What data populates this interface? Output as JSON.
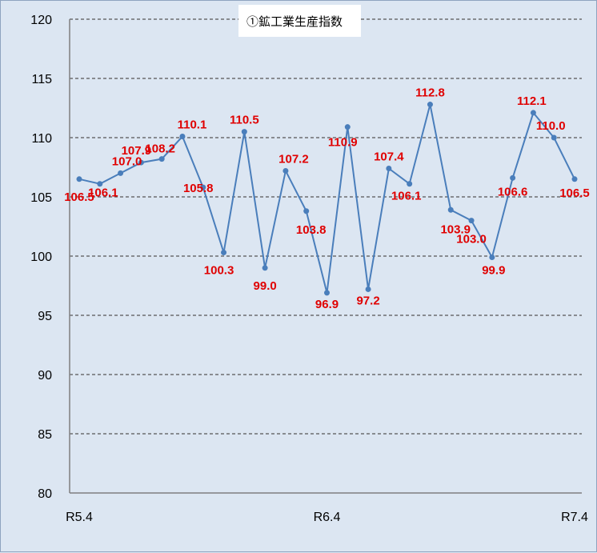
{
  "chart_data": {
    "type": "line",
    "title": "",
    "legend": "①鉱工業生産指数",
    "xlabel": "",
    "ylabel": "",
    "ylim": [
      80,
      120
    ],
    "y_ticks": [
      80,
      85,
      90,
      95,
      100,
      105,
      110,
      115,
      120
    ],
    "x_tick_labels": [
      "R5.4",
      "R6.4",
      "R7.4"
    ],
    "grid": true,
    "series": [
      {
        "name": "①鉱工業生産指数",
        "color": "#4a7ebb",
        "values": [
          106.5,
          106.1,
          107.0,
          107.9,
          108.2,
          110.1,
          105.8,
          100.3,
          110.5,
          99.0,
          107.2,
          103.8,
          96.9,
          110.9,
          97.2,
          107.4,
          106.1,
          112.8,
          103.9,
          103.0,
          99.9,
          106.6,
          112.1,
          110.0,
          106.5
        ],
        "labels": [
          "106.5",
          "106.1",
          "107.0",
          "107.9",
          "108.2",
          "110.1",
          "105.8",
          "100.3",
          "110.5",
          "99.0",
          "107.2",
          "103.8",
          "96.9",
          "110.9",
          "97.2",
          "107.4",
          "106.1",
          "112.8",
          "103.9",
          "103.0",
          "99.9",
          "106.6",
          "112.1",
          "110.0",
          "106.5"
        ]
      }
    ],
    "label_color": "#e00000"
  }
}
